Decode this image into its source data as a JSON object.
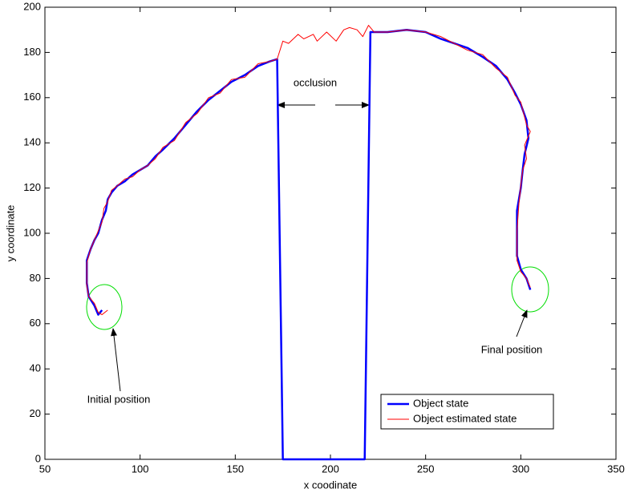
{
  "chart_data": {
    "type": "line",
    "xlabel": "x coodinate",
    "ylabel": "y coordinate",
    "xlim": [
      50,
      350
    ],
    "xticks": [
      50,
      100,
      150,
      200,
      250,
      300,
      350
    ],
    "ylim": [
      0,
      200
    ],
    "yticks": [
      0,
      20,
      40,
      60,
      80,
      100,
      120,
      140,
      160,
      180,
      200
    ],
    "legend": "lower right",
    "annotations": [
      "occlusion",
      "Initial position",
      "Final position"
    ],
    "series": [
      {
        "name": "Object state",
        "color": "#0000ff",
        "x": [
          80,
          78,
          76,
          73,
          72,
          72,
          74,
          76,
          78,
          80,
          82,
          83,
          85,
          88,
          92,
          96,
          100,
          104,
          108,
          112,
          118,
          124,
          130,
          136,
          142,
          148,
          155,
          162,
          168,
          172,
          175,
          218,
          221,
          230,
          240,
          250,
          258,
          265,
          272,
          280,
          287,
          293,
          297,
          300,
          303,
          304,
          302,
          301,
          300,
          298,
          298,
          298,
          300,
          303,
          305
        ],
        "values": [
          66,
          64,
          68,
          72,
          78,
          88,
          93,
          97,
          100,
          106,
          110,
          115,
          118,
          121,
          123,
          126,
          128,
          130,
          134,
          137,
          142,
          148,
          154,
          159,
          163,
          167,
          170,
          174,
          176,
          177,
          0,
          0,
          189,
          189,
          190,
          189,
          186,
          184,
          182,
          178,
          174,
          168,
          162,
          157,
          150,
          142,
          135,
          128,
          120,
          110,
          100,
          90,
          84,
          80,
          75
        ]
      },
      {
        "name": "Object estimated state",
        "color": "#ff0000",
        "x": [
          83,
          80,
          78,
          77,
          76,
          73,
          72,
          72,
          74,
          76,
          78,
          80,
          81,
          83,
          85,
          88,
          92,
          96,
          100,
          104,
          108,
          112,
          118,
          124,
          130,
          136,
          142,
          148,
          155,
          162,
          168,
          172,
          175,
          178,
          183,
          186,
          191,
          193,
          198,
          203,
          207,
          210,
          214,
          217,
          220,
          223,
          230,
          240,
          250,
          258,
          265,
          272,
          280,
          287,
          293,
          297,
          300,
          303,
          305,
          302,
          303,
          301,
          300,
          299,
          298,
          298,
          298,
          300,
          303,
          305
        ],
        "values": [
          66,
          64,
          65,
          67,
          69,
          72,
          77,
          87,
          93,
          97,
          101,
          105,
          111,
          114,
          119,
          121,
          124,
          125,
          128,
          130,
          133,
          138,
          141,
          149,
          153,
          160,
          162,
          168,
          169,
          175,
          176,
          177,
          185,
          184,
          188,
          186,
          188,
          185,
          189,
          185,
          190,
          191,
          190,
          187,
          192,
          189,
          189,
          190,
          189,
          187,
          184,
          181,
          179,
          173,
          169,
          161,
          158,
          148,
          145,
          139,
          133,
          128,
          121,
          113,
          101,
          92,
          88,
          83,
          80,
          76
        ]
      }
    ]
  }
}
